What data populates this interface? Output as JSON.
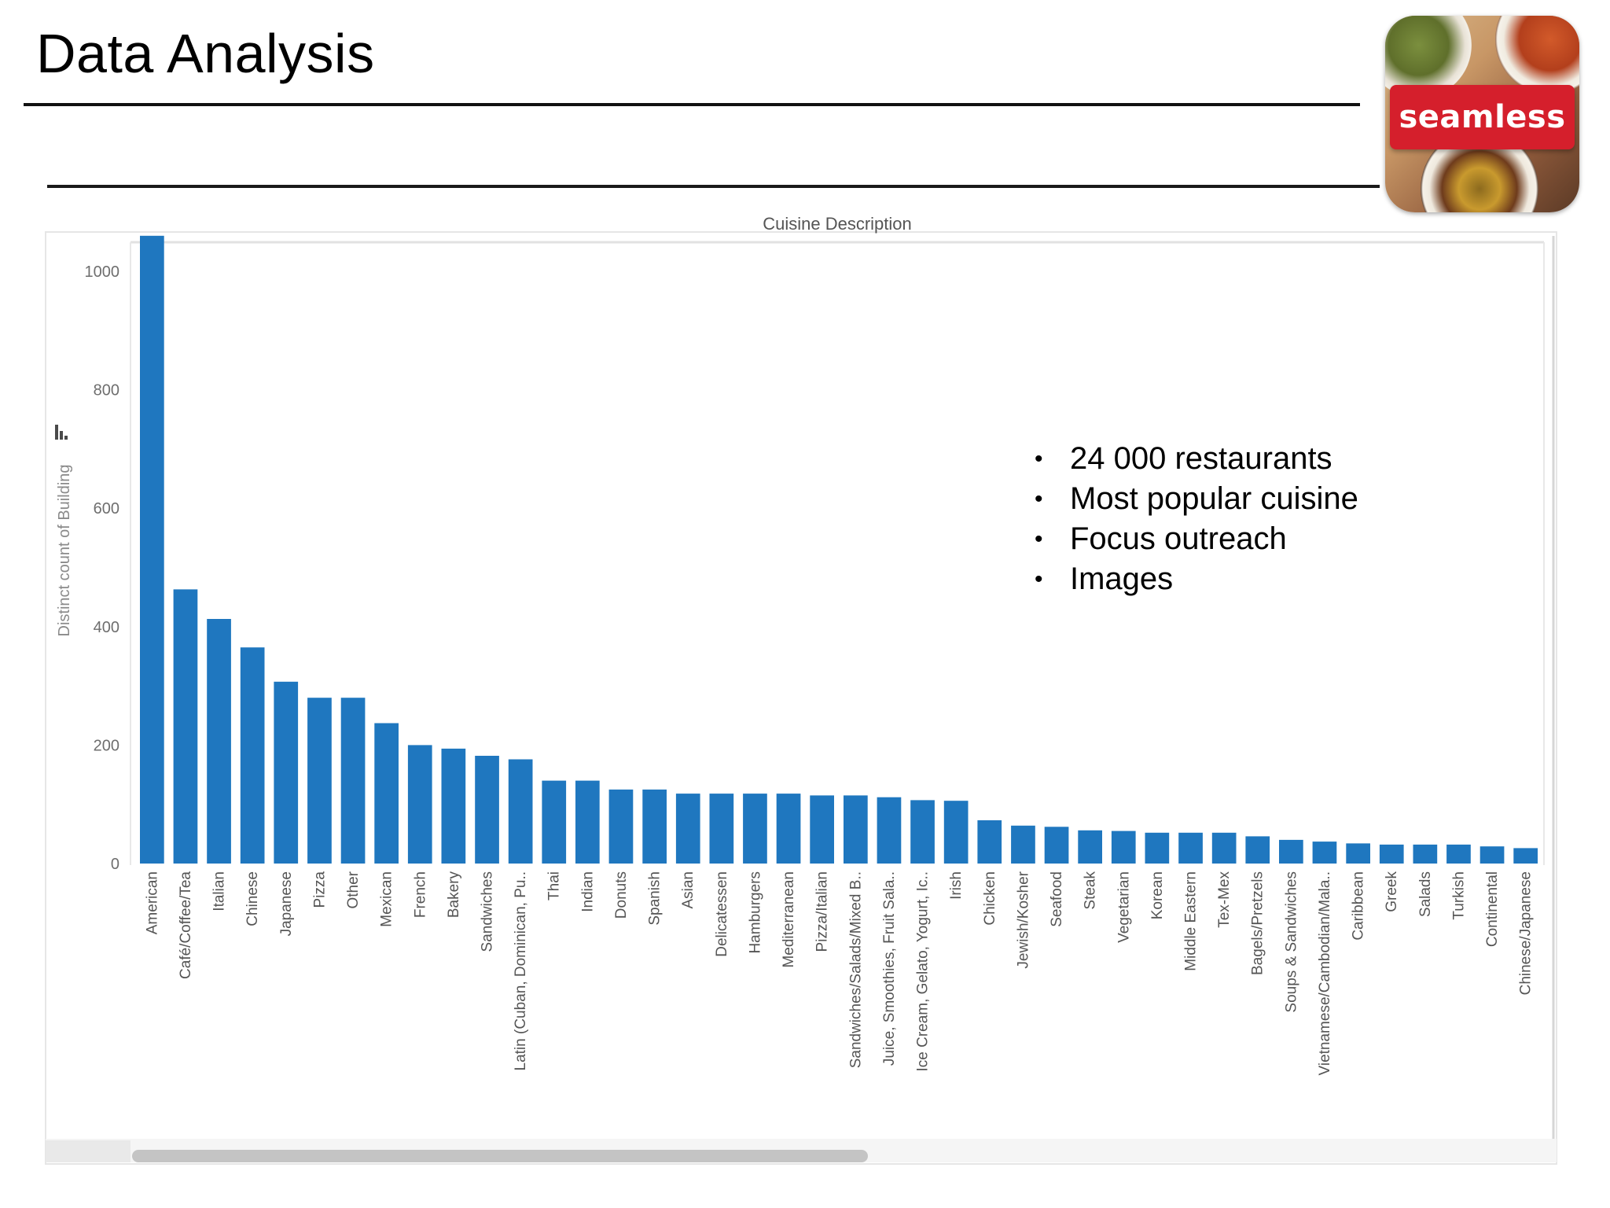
{
  "slide": {
    "title": "Data Analysis",
    "bullets": [
      "24 000 restaurants",
      "Most popular cuisine",
      "Focus outreach",
      "Images"
    ],
    "logo_text": "seamless",
    "bullet_symbol": "•"
  },
  "colors": {
    "bar": "#1f77bf",
    "logo_red": "#d51f2c",
    "axis_text": "#6e6e6e"
  },
  "icons": [
    "sort-descending-icon"
  ],
  "chart_data": {
    "type": "bar",
    "title": "Cuisine Description",
    "xlabel": "",
    "ylabel": "Distinct count of Building",
    "ylim": [
      0,
      1100
    ],
    "yticks": [
      0,
      200,
      400,
      600,
      800,
      1000
    ],
    "grid": false,
    "categories": [
      "American",
      "Café/Coffee/Tea",
      "Italian",
      "Chinese",
      "Japanese",
      "Pizza",
      "Other",
      "Mexican",
      "French",
      "Bakery",
      "Sandwiches",
      "Latin (Cuban, Dominican, Pu..",
      "Thai",
      "Indian",
      "Donuts",
      "Spanish",
      "Asian",
      "Delicatessen",
      "Hamburgers",
      "Mediterranean",
      "Pizza/Italian",
      "Sandwiches/Salads/Mixed B..",
      "Juice, Smoothies, Fruit Sala..",
      "Ice Cream, Gelato, Yogurt, Ic..",
      "Irish",
      "Chicken",
      "Jewish/Kosher",
      "Seafood",
      "Steak",
      "Vegetarian",
      "Korean",
      "Middle Eastern",
      "Tex-Mex",
      "Bagels/Pretzels",
      "Soups & Sandwiches",
      "Vietnamese/Cambodian/Mala..",
      "Caribbean",
      "Greek",
      "Salads",
      "Turkish",
      "Continental",
      "Chinese/Japanese"
    ],
    "values": [
      1060,
      463,
      413,
      365,
      307,
      280,
      280,
      237,
      200,
      194,
      182,
      176,
      140,
      140,
      125,
      125,
      118,
      118,
      118,
      118,
      115,
      115,
      112,
      107,
      106,
      73,
      64,
      62,
      56,
      55,
      52,
      52,
      52,
      46,
      40,
      37,
      34,
      32,
      32,
      32,
      29,
      26
    ]
  }
}
